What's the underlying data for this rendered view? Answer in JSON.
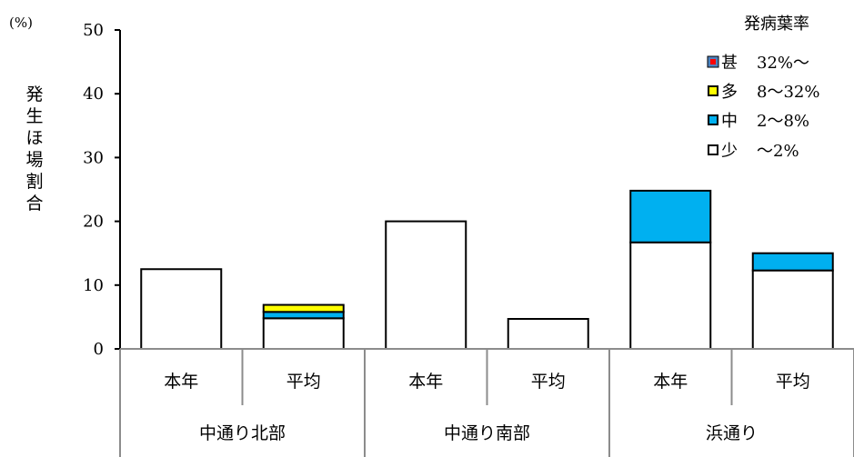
{
  "chart_data": {
    "type": "bar",
    "stacked": true,
    "unit_label": "(%)",
    "ylabel": "発生ほ場割合",
    "ylim": [
      0,
      50
    ],
    "yticks": [
      0,
      10,
      20,
      30,
      40,
      50
    ],
    "grid": false,
    "legend": {
      "title": "発病葉率",
      "placement": "top-right",
      "entries": [
        {
          "symbol": "■",
          "label": "甚",
          "range": "32%～"
        },
        {
          "symbol": "■",
          "label": "多",
          "range": "8～32%"
        },
        {
          "symbol": "■",
          "label": "中",
          "range": "2～8%"
        },
        {
          "symbol": "□",
          "label": "少",
          "range": "～2%"
        }
      ]
    },
    "groups": [
      "中通り北部",
      "中通り南部",
      "浜通り"
    ],
    "categories": [
      "本年",
      "平均",
      "本年",
      "平均",
      "本年",
      "平均"
    ],
    "series": [
      {
        "name": "少",
        "color": "#ffffff",
        "values": [
          12.5,
          4.8,
          20.0,
          4.7,
          16.7,
          12.3
        ]
      },
      {
        "name": "中",
        "color": "#00b0f0",
        "values": [
          0,
          1.0,
          0,
          0,
          8.1,
          2.7
        ]
      },
      {
        "name": "多",
        "color": "#ffff00",
        "values": [
          0,
          1.1,
          0,
          0,
          0,
          0
        ]
      },
      {
        "name": "甚",
        "color": "#ff0000",
        "values": [
          0,
          0,
          0,
          0,
          0,
          0
        ]
      }
    ]
  }
}
